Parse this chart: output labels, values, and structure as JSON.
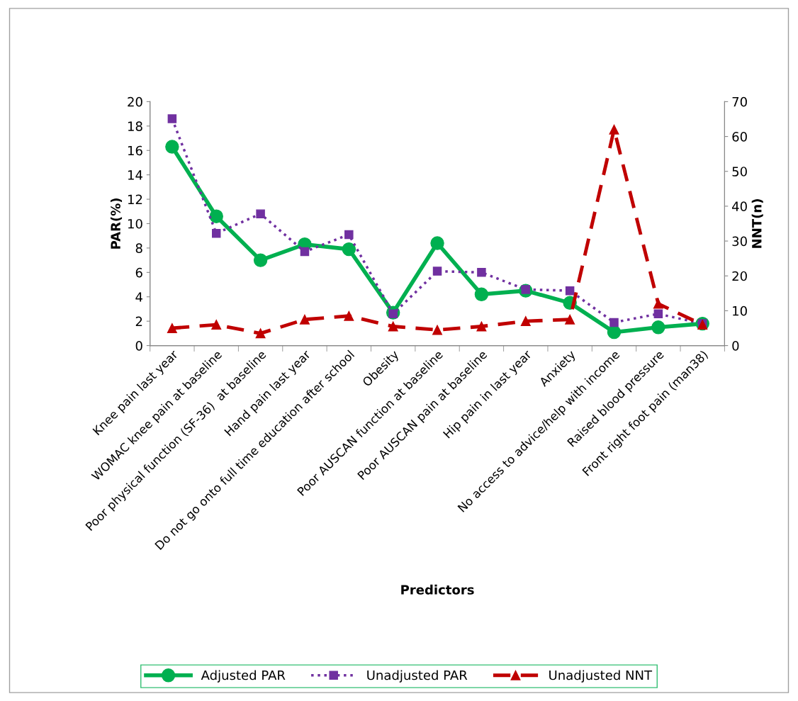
{
  "chart_data": {
    "type": "line",
    "xlabel": "Predictors",
    "ylabel": "PAR(%)",
    "y2label": "NNT(n)",
    "categories": [
      "Knee pain last year",
      "WOMAC knee pain at baseline",
      "Poor physical function (SF-36)  at baseline",
      "Hand pain last year",
      "Do not go onto full time education after school",
      "Obesity",
      "Poor AUSCAN function at baseline",
      "Poor AUSCAN pain at baseline",
      "Hip pain in last year",
      "Anxiety",
      "No access to advice/help with income",
      "Raised blood pressure",
      "Front right foot pain (man38)"
    ],
    "series": [
      {
        "name": "Adjusted PAR",
        "color": "#00b050",
        "marker": "circle",
        "line_style": "solid",
        "values": [
          16.3,
          10.6,
          7.0,
          8.3,
          7.9,
          2.7,
          8.4,
          4.2,
          4.5,
          3.5,
          1.1,
          1.5,
          1.8
        ]
      },
      {
        "name": "Unadjusted PAR",
        "color": "#7030a0",
        "marker": "square",
        "line_style": "dotted",
        "values": [
          18.6,
          9.2,
          10.8,
          7.7,
          9.1,
          2.6,
          6.1,
          6.0,
          4.6,
          4.5,
          1.9,
          2.6,
          1.8
        ]
      },
      {
        "name": "Unadjusted NNT",
        "color": "#c00000",
        "marker": "triangle",
        "line_style": "dashed",
        "axis": "y2",
        "values": [
          5,
          6,
          3.5,
          7.5,
          8.5,
          5.5,
          4.5,
          5.5,
          7,
          7.5,
          62,
          12,
          6
        ]
      }
    ],
    "ylim": [
      0,
      20
    ],
    "yticks": [
      0,
      2,
      4,
      6,
      8,
      10,
      12,
      14,
      16,
      18,
      20
    ],
    "y2lim": [
      0,
      70
    ],
    "y2ticks": [
      0,
      10,
      20,
      30,
      40,
      50,
      60,
      70
    ],
    "grid": false,
    "legend": "bottom"
  }
}
